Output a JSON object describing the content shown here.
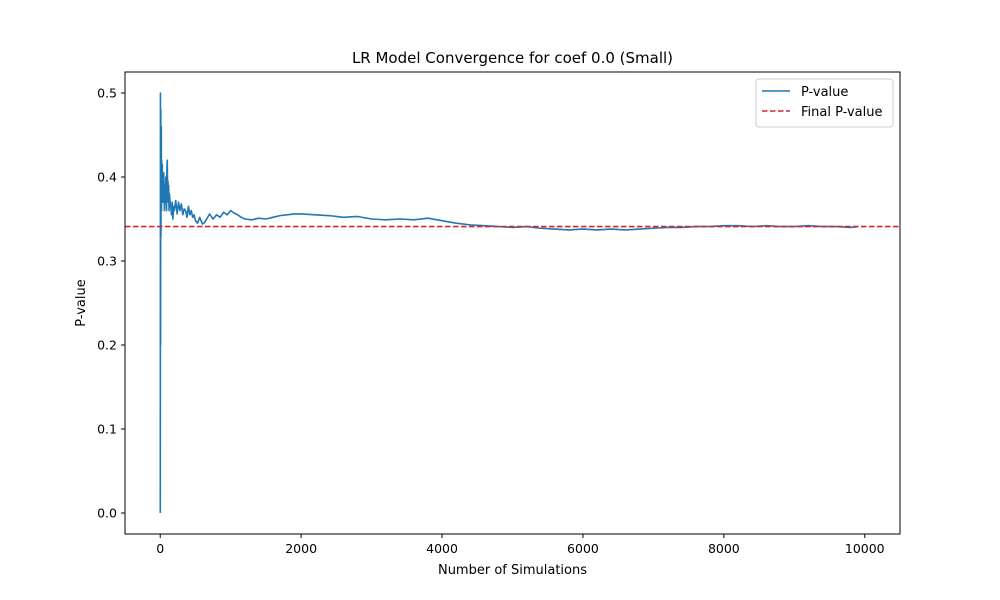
{
  "chart_data": {
    "type": "line",
    "title": "LR Model Convergence for coef 0.0 (Small)",
    "xlabel": "Number of Simulations",
    "ylabel": "P-value",
    "xlim": [
      -500,
      10500
    ],
    "ylim": [
      -0.025,
      0.525
    ],
    "xticks": [
      0,
      2000,
      4000,
      6000,
      8000,
      10000
    ],
    "xtick_labels": [
      "0",
      "2000",
      "4000",
      "6000",
      "8000",
      "10000"
    ],
    "yticks": [
      0.0,
      0.1,
      0.2,
      0.3,
      0.4,
      0.5
    ],
    "ytick_labels": [
      "0.0",
      "0.1",
      "0.2",
      "0.3",
      "0.4",
      "0.5"
    ],
    "grid": false,
    "legend_position": "top-right",
    "series": [
      {
        "name": "P-value",
        "color": "#1f77b4",
        "style": "solid",
        "x": [
          1,
          3,
          5,
          8,
          10,
          12,
          15,
          18,
          20,
          22,
          25,
          28,
          30,
          33,
          36,
          40,
          45,
          50,
          55,
          60,
          65,
          70,
          75,
          80,
          85,
          90,
          95,
          100,
          105,
          110,
          115,
          120,
          125,
          130,
          140,
          150,
          160,
          170,
          180,
          190,
          200,
          220,
          240,
          260,
          280,
          300,
          320,
          340,
          360,
          380,
          400,
          420,
          440,
          460,
          480,
          500,
          530,
          560,
          600,
          630,
          660,
          700,
          750,
          800,
          850,
          900,
          950,
          1000,
          1050,
          1100,
          1150,
          1200,
          1300,
          1400,
          1500,
          1600,
          1700,
          1800,
          1900,
          2000,
          2200,
          2400,
          2600,
          2800,
          3000,
          3200,
          3400,
          3600,
          3800,
          4000,
          4200,
          4400,
          4600,
          4800,
          5000,
          5200,
          5400,
          5600,
          5800,
          6000,
          6200,
          6400,
          6600,
          6800,
          7000,
          7200,
          7400,
          7600,
          7800,
          8000,
          8200,
          8400,
          8600,
          8800,
          9000,
          9200,
          9400,
          9600,
          9800,
          9900
        ],
        "values": [
          0.0,
          0.5,
          0.2,
          0.48,
          0.33,
          0.41,
          0.46,
          0.36,
          0.42,
          0.37,
          0.4,
          0.38,
          0.415,
          0.37,
          0.4,
          0.39,
          0.37,
          0.405,
          0.38,
          0.36,
          0.39,
          0.37,
          0.385,
          0.4,
          0.375,
          0.36,
          0.41,
          0.42,
          0.38,
          0.395,
          0.37,
          0.39,
          0.36,
          0.38,
          0.37,
          0.365,
          0.355,
          0.37,
          0.35,
          0.365,
          0.36,
          0.372,
          0.356,
          0.37,
          0.36,
          0.368,
          0.355,
          0.362,
          0.36,
          0.352,
          0.365,
          0.355,
          0.36,
          0.352,
          0.355,
          0.348,
          0.345,
          0.352,
          0.344,
          0.346,
          0.35,
          0.356,
          0.35,
          0.355,
          0.352,
          0.358,
          0.355,
          0.36,
          0.357,
          0.355,
          0.352,
          0.35,
          0.349,
          0.351,
          0.35,
          0.352,
          0.354,
          0.355,
          0.356,
          0.356,
          0.355,
          0.354,
          0.352,
          0.353,
          0.35,
          0.349,
          0.35,
          0.349,
          0.351,
          0.348,
          0.345,
          0.343,
          0.342,
          0.341,
          0.34,
          0.341,
          0.339,
          0.338,
          0.337,
          0.338,
          0.337,
          0.338,
          0.337,
          0.338,
          0.339,
          0.34,
          0.34,
          0.341,
          0.341,
          0.342,
          0.342,
          0.341,
          0.342,
          0.341,
          0.341,
          0.342,
          0.341,
          0.341,
          0.34,
          0.341
        ]
      },
      {
        "name": "Final P-value",
        "color": "#d62728",
        "style": "dashed",
        "hline": 0.341
      }
    ]
  }
}
